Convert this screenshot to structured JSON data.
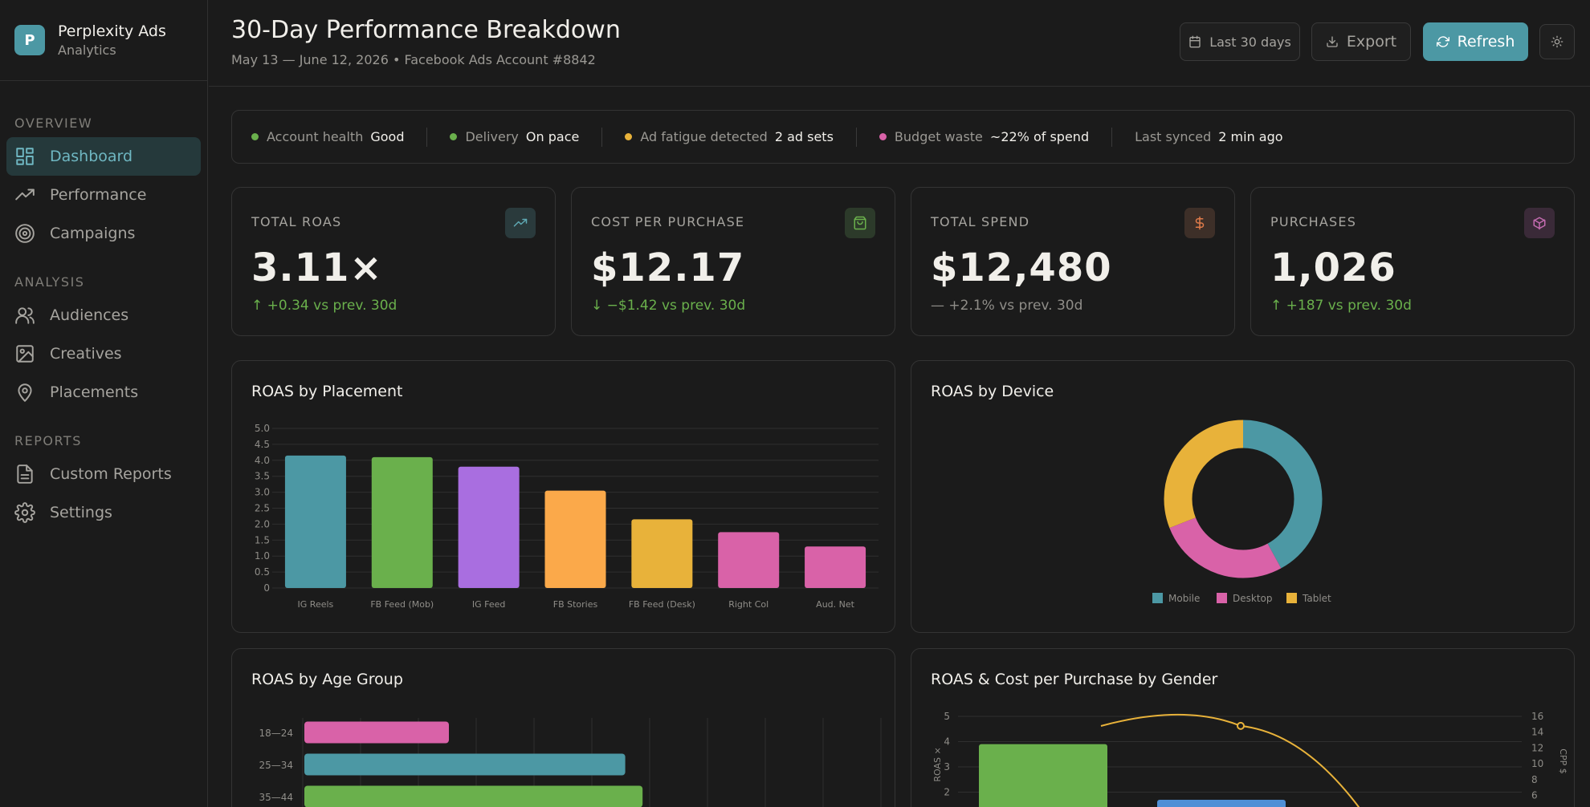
{
  "brand": {
    "initial": "P",
    "title": "Perplexity Ads",
    "subtitle": "Analytics"
  },
  "nav": {
    "overview_label": "OVERVIEW",
    "analysis_label": "ANALYSIS",
    "reports_label": "REPORTS",
    "dashboard": "Dashboard",
    "performance": "Performance",
    "campaigns": "Campaigns",
    "audiences": "Audiences",
    "creatives": "Creatives",
    "placements": "Placements",
    "custom_reports": "Custom Reports",
    "settings": "Settings"
  },
  "header": {
    "title": "30-Day Performance Breakdown",
    "subtitle": "May 13 — June 12, 2026 • Facebook Ads Account #8842",
    "date_range_label": "Last 30 days",
    "export_label": "Export",
    "refresh_label": "Refresh"
  },
  "status": {
    "health_label": "Account health",
    "health_value": "Good",
    "delivery_label": "Delivery",
    "delivery_value": "On pace",
    "fatigue_label": "Ad fatigue detected",
    "fatigue_value": "2 ad sets",
    "waste_label": "Budget waste",
    "waste_value": "~22% of spend",
    "synced_label": "Last synced",
    "synced_value": "2 min ago",
    "colors": {
      "good": "#6ab04c",
      "warn": "#e8b23a",
      "alert": "#d962a8"
    }
  },
  "kpis": [
    {
      "label": "TOTAL ROAS",
      "value": "3.11×",
      "delta": "↑ +0.34 vs prev. 30d",
      "icon": "trending-up-icon",
      "delta_color": "#6ab04c",
      "icon_color": "#5fa9b4"
    },
    {
      "label": "COST PER PURCHASE",
      "value": "$12.17",
      "delta": "↓ −$1.42 vs prev. 30d",
      "icon": "shopping-bag-icon",
      "delta_color": "#6ab04c",
      "icon_color": "#6ab04c"
    },
    {
      "label": "TOTAL SPEND",
      "value": "$12,480",
      "delta": "— +2.1% vs prev. 30d",
      "icon": "dollar-icon",
      "delta_color": "#8f8d88",
      "icon_color": "#e07b4a"
    },
    {
      "label": "PURCHASES",
      "value": "1,026",
      "delta": "↑ +187 vs prev. 30d",
      "icon": "box-icon",
      "delta_color": "#6ab04c",
      "icon_color": "#c46bb0"
    }
  ],
  "chart_data": [
    {
      "type": "bar",
      "title": "ROAS by Placement",
      "categories": [
        "IG Reels",
        "FB Feed (Mob)",
        "IG Feed",
        "FB Stories",
        "FB Feed (Desk)",
        "Right Col",
        "Aud. Net"
      ],
      "values": [
        4.15,
        4.1,
        3.8,
        3.05,
        2.15,
        1.75,
        1.3
      ],
      "y_ticks": [
        "5.0",
        "4.5",
        "4.0",
        "3.5",
        "3.0",
        "2.5",
        "2.0",
        "1.5",
        "1.0",
        "0.5",
        "0"
      ],
      "ylim": [
        0,
        5
      ],
      "colors": [
        "#4c98a4",
        "#6ab04c",
        "#a96ee0",
        "#fba94a",
        "#e8b23a",
        "#d962a8",
        "#d962a8"
      ]
    },
    {
      "type": "pie",
      "title": "ROAS by Device",
      "categories": [
        "Mobile",
        "Desktop",
        "Tablet"
      ],
      "values": [
        42,
        27,
        31
      ],
      "colors": [
        "#4c98a4",
        "#d962a8",
        "#e8b23a"
      ],
      "legend": "bottom"
    },
    {
      "type": "bar",
      "title": "ROAS by Age Group",
      "orientation": "horizontal",
      "categories": [
        "18—24",
        "25—34",
        "35—44"
      ],
      "values": [
        2.5,
        5.55,
        5.85
      ],
      "colors": [
        "#d962a8",
        "#4c98a4",
        "#6ab04c"
      ]
    },
    {
      "type": "bar",
      "title": "ROAS & Cost per Purchase by Gender",
      "ylabel": "ROAS ×",
      "y2label": "CPP $",
      "y_ticks": [
        "5",
        "4",
        "3",
        "2"
      ],
      "y2_ticks": [
        "16",
        "14",
        "12",
        "10",
        "8",
        "6"
      ],
      "series": [
        {
          "type": "bar",
          "values": [
            3.9,
            1.7
          ],
          "colors": [
            "#6ab04c",
            "#4f8fd6"
          ]
        },
        {
          "type": "line",
          "peak_value": 15.2,
          "color": "#e8b23a"
        }
      ]
    }
  ]
}
